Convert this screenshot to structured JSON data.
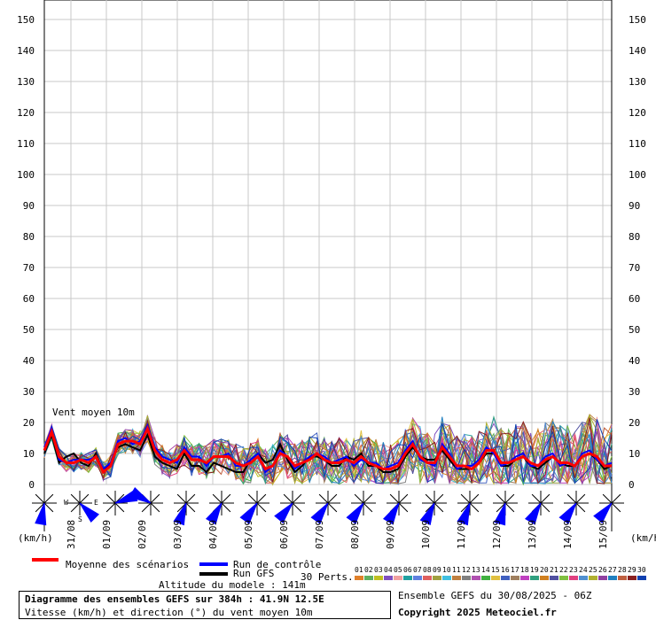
{
  "chart_data": {
    "type": "line",
    "ylim": [
      0,
      150
    ],
    "yticks": [
      0,
      10,
      20,
      30,
      40,
      50,
      60,
      70,
      80,
      90,
      100,
      110,
      120,
      130,
      140,
      150
    ],
    "dates": [
      "31/08",
      "01/09",
      "02/09",
      "03/09",
      "04/09",
      "05/09",
      "06/09",
      "07/09",
      "08/09",
      "09/09",
      "10/09",
      "11/09",
      "12/09",
      "13/09",
      "14/09",
      "15/09"
    ],
    "unit_left": "(km/h)",
    "unit_right": "(km/h)",
    "annotation": "Vent moyen 10m",
    "compass": {
      "w": "W",
      "e": "E",
      "s": "S"
    },
    "step_hours": 6,
    "mean": [
      11,
      17,
      9,
      7,
      7,
      8,
      7,
      9,
      4,
      6,
      13,
      14,
      14,
      13,
      18,
      11,
      8,
      7,
      8,
      11,
      8,
      8,
      7,
      9,
      9,
      9,
      7,
      6,
      7,
      9,
      5,
      6,
      10,
      9,
      6,
      7,
      8,
      10,
      8,
      7,
      7,
      8,
      7,
      9,
      7,
      6,
      5,
      5,
      6,
      10,
      13,
      9,
      7,
      7,
      12,
      9,
      6,
      6,
      5,
      7,
      11,
      11,
      7,
      7,
      8,
      9,
      7,
      6,
      8,
      9,
      7,
      7,
      6,
      9,
      10,
      9,
      6,
      6
    ],
    "control": [
      12,
      18,
      8,
      7,
      8,
      8,
      8,
      9,
      5,
      7,
      14,
      15,
      13,
      14,
      19,
      12,
      9,
      8,
      7,
      12,
      9,
      9,
      6,
      9,
      9,
      10,
      6,
      6,
      8,
      10,
      4,
      6,
      11,
      9,
      5,
      7,
      9,
      10,
      9,
      7,
      8,
      9,
      6,
      8,
      7,
      7,
      5,
      6,
      7,
      11,
      14,
      8,
      7,
      6,
      13,
      10,
      5,
      6,
      6,
      8,
      12,
      10,
      6,
      7,
      9,
      10,
      6,
      6,
      9,
      10,
      6,
      7,
      6,
      10,
      11,
      8,
      6,
      7
    ],
    "gfs": [
      10,
      16,
      7,
      9,
      10,
      7,
      6,
      10,
      4,
      7,
      12,
      13,
      12,
      11,
      16,
      9,
      7,
      6,
      5,
      10,
      6,
      6,
      4,
      7,
      6,
      5,
      4,
      4,
      8,
      10,
      7,
      8,
      13,
      8,
      4,
      6,
      9,
      9,
      8,
      6,
      6,
      9,
      8,
      10,
      6,
      6,
      4,
      4,
      5,
      9,
      12,
      9,
      8,
      8,
      11,
      8,
      5,
      5,
      5,
      7,
      10,
      10,
      6,
      6,
      8,
      9,
      6,
      5,
      7,
      9,
      7,
      6,
      6,
      9,
      10,
      8,
      5,
      6
    ],
    "members": 30,
    "member_colors": [
      "#e0802a",
      "#60b060",
      "#c0c020",
      "#8050c0",
      "#f0a0a0",
      "#20a0a0",
      "#6080e0",
      "#e06060",
      "#a0a040",
      "#40c0e0",
      "#c08040",
      "#808080",
      "#b050b0",
      "#40b040",
      "#e0c040",
      "#4060c0",
      "#a08060",
      "#c040c0",
      "#30a080",
      "#d08020",
      "#5050a0",
      "#80c040",
      "#e04080",
      "#5090d0",
      "#b0b030",
      "#9040a0",
      "#2080c0",
      "#c06040",
      "#8a2020",
      "#1040b0"
    ],
    "arrows": [
      {
        "day": 0,
        "dir": 190
      },
      {
        "day": 1,
        "dir": 135
      },
      {
        "day": 2,
        "dir": 70
      },
      {
        "day": 3,
        "dir": 300
      },
      {
        "day": 4,
        "dir": 200
      },
      {
        "day": 5,
        "dir": 210
      },
      {
        "day": 6,
        "dir": 215
      },
      {
        "day": 7,
        "dir": 220
      },
      {
        "day": 8,
        "dir": 215
      },
      {
        "day": 9,
        "dir": 215
      },
      {
        "day": 10,
        "dir": 210
      },
      {
        "day": 11,
        "dir": 205
      },
      {
        "day": 12,
        "dir": 200
      },
      {
        "day": 13,
        "dir": 195
      },
      {
        "day": 14,
        "dir": 210
      },
      {
        "day": 15,
        "dir": 215
      },
      {
        "day": 16,
        "dir": 220
      }
    ]
  },
  "legend": {
    "mean": "Moyenne des scénarios",
    "control": "Run de contrôle",
    "gfs": "Run GFS",
    "perts": "30 Perts.",
    "colors": {
      "mean": "#ff0000",
      "control": "#0000ff",
      "gfs": "#000000"
    }
  },
  "footer": {
    "title": "Diagramme des ensembles GEFS sur 384h : 41.9N 12.5E",
    "subtitle": "Vitesse (km/h) et direction (°) du vent moyen 10m",
    "altitude": "Altitude du modele : 141m",
    "run": "Ensemble GEFS du 30/08/2025 - 06Z",
    "copyright": "Copyright 2025 Meteociel.fr"
  }
}
